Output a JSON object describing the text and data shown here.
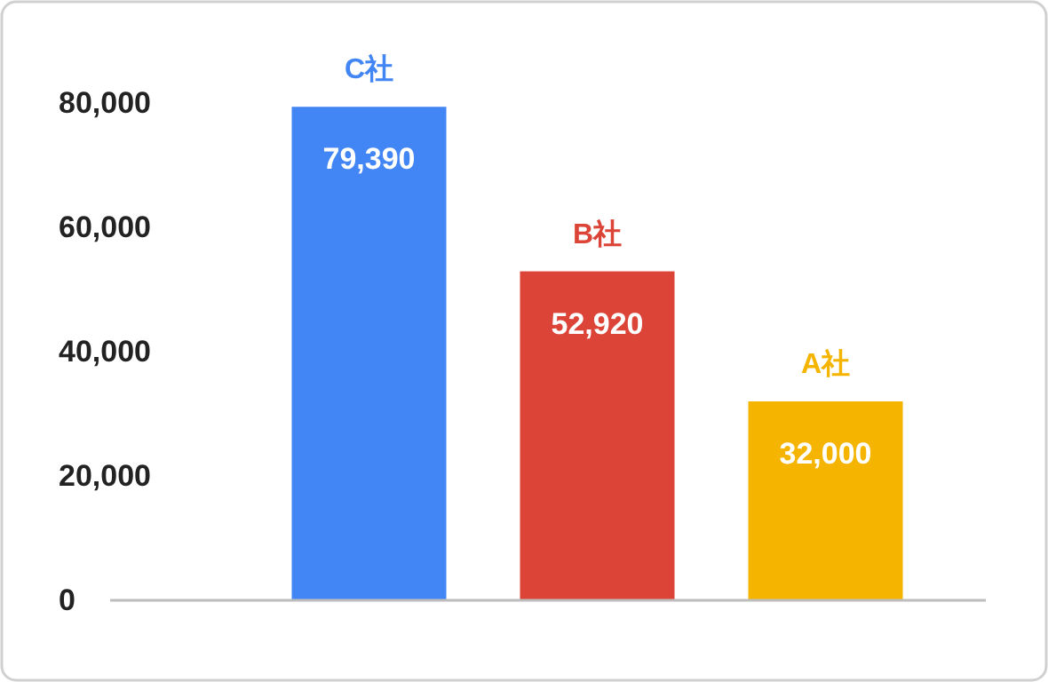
{
  "chart_data": {
    "type": "bar",
    "categories": [
      "C社",
      "B社",
      "A社"
    ],
    "values": [
      79390,
      52920,
      32000
    ],
    "value_labels": [
      "79,390",
      "52,920",
      "32,000"
    ],
    "colors": [
      "#4285f4",
      "#db4437",
      "#f4b400"
    ],
    "ylim": [
      0,
      80000
    ],
    "yticks": [
      {
        "value": 0,
        "label": "0"
      },
      {
        "value": 20000,
        "label": "20,000"
      },
      {
        "value": 40000,
        "label": "40,000"
      },
      {
        "value": 60000,
        "label": "60,000"
      },
      {
        "value": 80000,
        "label": "80,000"
      }
    ],
    "grid": false
  }
}
